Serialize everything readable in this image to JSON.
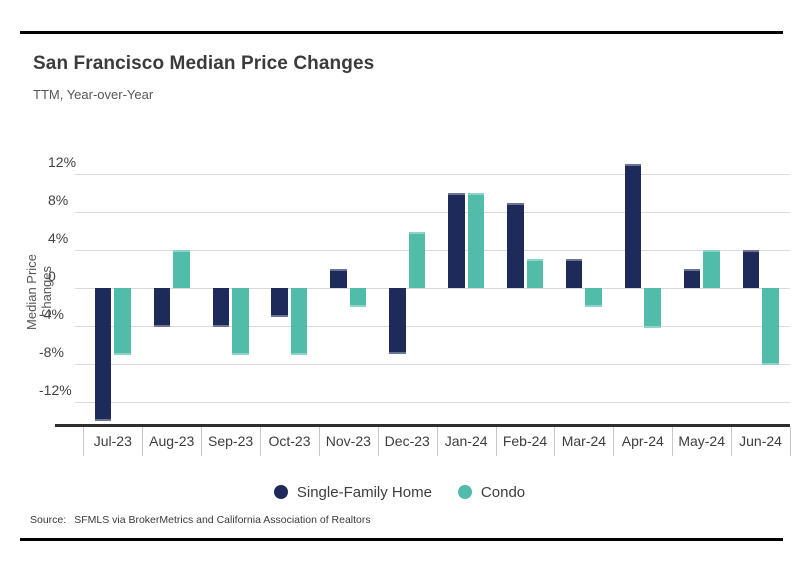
{
  "page": {
    "title": "San Francisco Median Price Changes",
    "subtitle": "TTM, Year-over-Year",
    "source_label": "Source:",
    "source_text": "SFMLS via BrokerMetrics and California Association of Realtors"
  },
  "colors": {
    "single_family": "#1e2a59",
    "condo": "#52bcab",
    "gridline": "#dadada",
    "axis_line": "#2e2e2e",
    "tick_line": "#c9c9c9",
    "rule": "#000000"
  },
  "y_axis": {
    "label": "Median Price Changes",
    "ticks": [
      {
        "value": 12,
        "label": "12%"
      },
      {
        "value": 8,
        "label": "8%"
      },
      {
        "value": 4,
        "label": "4%"
      },
      {
        "value": 0,
        "label": "0"
      },
      {
        "value": -4,
        "label": "-4%"
      },
      {
        "value": -8,
        "label": "-8%"
      },
      {
        "value": -12,
        "label": "-12%"
      }
    ]
  },
  "chart_data": {
    "type": "bar",
    "title": "San Francisco Median Price Changes",
    "subtitle": "TTM, Year-over-Year",
    "xlabel": "",
    "ylabel": "Median Price Changes",
    "unit": "%",
    "ylim": [
      -14.5,
      13.5
    ],
    "grid": "horizontal",
    "legend_position": "bottom",
    "categories": [
      "Jul-23",
      "Aug-23",
      "Sep-23",
      "Oct-23",
      "Nov-23",
      "Dec-23",
      "Jan-24",
      "Feb-24",
      "Mar-24",
      "Apr-24",
      "May-24",
      "Jun-24"
    ],
    "series": [
      {
        "name": "Single-Family Home",
        "color": "#1e2a59",
        "values": [
          -14.0,
          -4.1,
          -4.1,
          -3.1,
          2.0,
          -7.0,
          10.0,
          8.9,
          3.0,
          13.0,
          2.0,
          4.0
        ]
      },
      {
        "name": "Condo",
        "color": "#52bcab",
        "values": [
          -7.1,
          4.0,
          -7.1,
          -7.1,
          -2.0,
          5.9,
          10.0,
          3.0,
          -2.0,
          -4.2,
          4.0,
          -8.1
        ]
      }
    ]
  }
}
